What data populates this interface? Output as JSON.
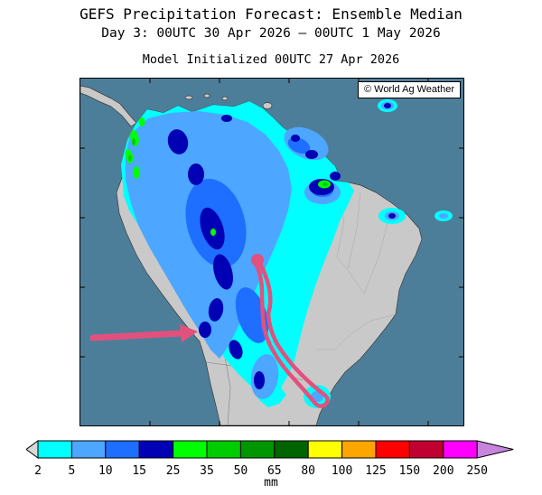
{
  "header": {
    "title": "GEFS Precipitation Forecast: Ensemble Median",
    "subtitle": "Day 3: 00UTC 30 Apr 2026 — 00UTC 1 May 2026",
    "init_line": "Model Initialized 00UTC 27 Apr 2026"
  },
  "map": {
    "copyright": "© World Ag Weather",
    "ocean_color": "#4d7e99",
    "land_color": "#c9c9c9",
    "coast_color": "#3c3c3c"
  },
  "annotations": {
    "color": "#e2517e",
    "arrow": "analyst highlight arrow pointing at heavy rain core",
    "outline": "analyst outlined region over southeastern Brazil"
  },
  "legend": {
    "unit": "mm",
    "values": [
      2,
      5,
      10,
      15,
      25,
      35,
      50,
      65,
      80,
      100,
      125,
      150,
      200,
      250
    ],
    "cell_colors": [
      "#00ffff",
      "#4da6ff",
      "#1e6eff",
      "#0000b4",
      "#00ff00",
      "#00cd00",
      "#009600",
      "#006400",
      "#ffff00",
      "#ffa500",
      "#ff0000",
      "#c00030",
      "#ff00ff"
    ],
    "under_range_color": "#d8d8d8",
    "over_range_color": "#c884dc"
  }
}
